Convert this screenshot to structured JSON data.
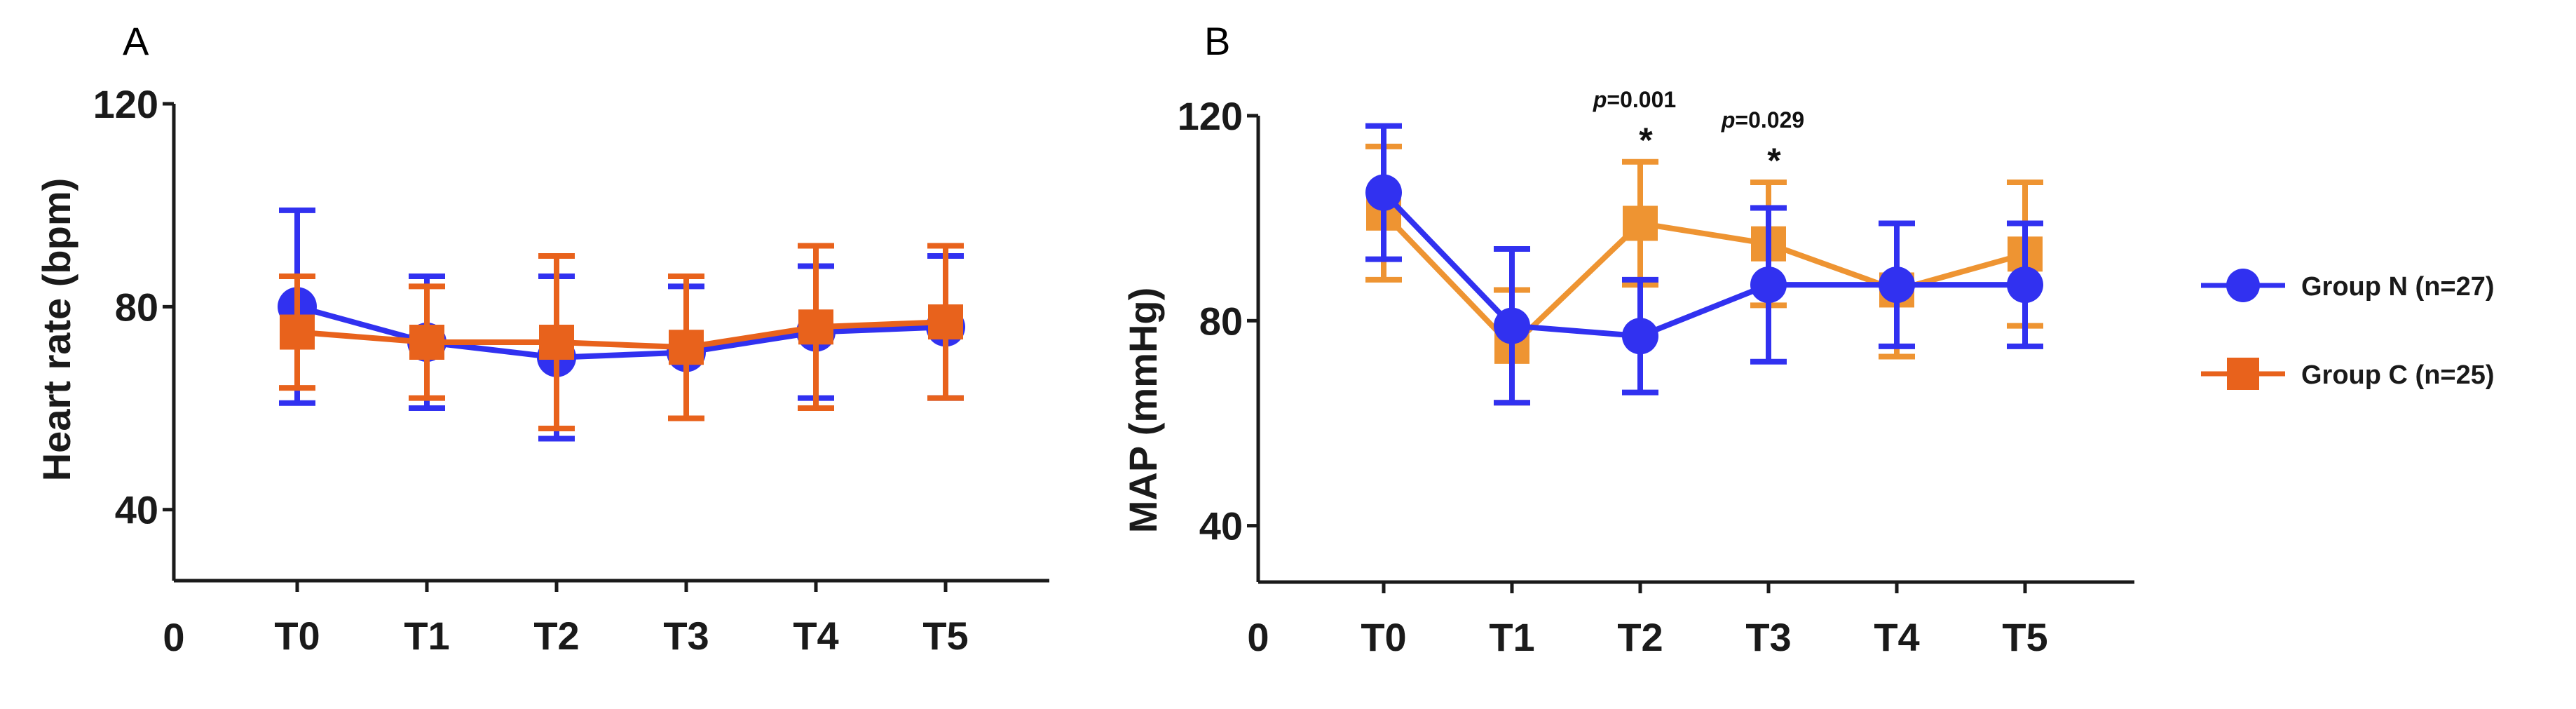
{
  "colors": {
    "group_n": "#3131f0",
    "group_c_a": "#e8621c",
    "group_c_b": "#ee9432",
    "axis": "#1a1a1a"
  },
  "legend": {
    "items": [
      {
        "label": "Group N (n=27)",
        "marker": "circle"
      },
      {
        "label": "Group C (n=25)",
        "marker": "square"
      }
    ]
  },
  "chart_data": [
    {
      "panel": "A",
      "type": "line",
      "xlabel": "",
      "ylabel": "Heart rate (bpm)",
      "x_origin_label": "0",
      "categories": [
        "T0",
        "T1",
        "T2",
        "T3",
        "T4",
        "T5"
      ],
      "yticks": [
        40,
        80,
        120
      ],
      "ylim": [
        26,
        120
      ],
      "series": [
        {
          "name": "Group N (n=27)",
          "values": [
            80,
            73,
            70,
            71,
            75,
            76
          ],
          "err": [
            19,
            13,
            16,
            13,
            13,
            14
          ]
        },
        {
          "name": "Group C (n=25)",
          "values": [
            75,
            73,
            73,
            72,
            76,
            77
          ],
          "err": [
            11,
            11,
            17,
            14,
            16,
            15
          ]
        }
      ],
      "annotations": []
    },
    {
      "panel": "B",
      "type": "line",
      "xlabel": "",
      "ylabel": "MAP (mmHg)",
      "x_origin_label": "0",
      "categories": [
        "T0",
        "T1",
        "T2",
        "T3",
        "T4",
        "T5"
      ],
      "yticks": [
        40,
        80,
        120
      ],
      "ylim": [
        29,
        120
      ],
      "series": [
        {
          "name": "Group N (n=27)",
          "values": [
            105,
            79,
            77,
            87,
            87,
            87
          ],
          "err": [
            13,
            15,
            11,
            15,
            12,
            12
          ]
        },
        {
          "name": "Group C (n=25)",
          "values": [
            101,
            75,
            99,
            95,
            86,
            93
          ],
          "err": [
            13,
            11,
            12,
            12,
            13,
            14
          ]
        }
      ],
      "annotations": [
        {
          "category": "T2",
          "p_prefix": "p",
          "p_rest": "=0.001",
          "star": "*"
        },
        {
          "category": "T3",
          "p_prefix": "p",
          "p_rest": "=0.029",
          "star": "*"
        }
      ]
    }
  ]
}
